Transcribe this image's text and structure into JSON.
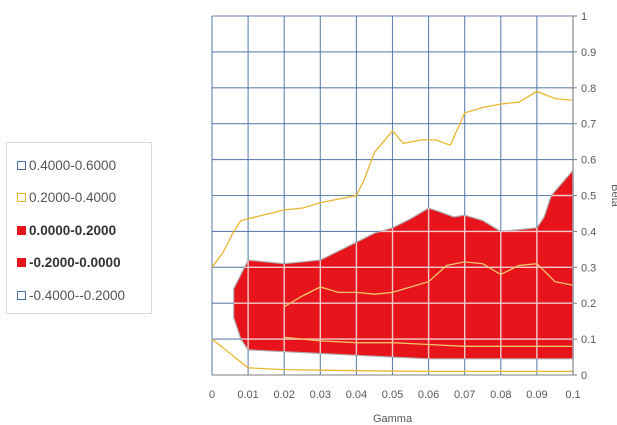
{
  "chart_data": {
    "type": "contour",
    "xlabel": "Gamma",
    "ylabel": "Beta",
    "x_ticks": [
      "0",
      "0.01",
      "0.02",
      "0.03",
      "0.04",
      "0.05",
      "0.06",
      "0.07",
      "0.08",
      "0.09",
      "0.1"
    ],
    "y_ticks": [
      "0",
      "0.1",
      "0.2",
      "0.3",
      "0.4",
      "0.5",
      "0.6",
      "0.7",
      "0.8",
      "0.9",
      "1"
    ],
    "xlim": [
      0,
      0.1
    ],
    "ylim": [
      0,
      1
    ],
    "grid": true,
    "legend_position": "left",
    "legend": [
      {
        "label": "0.4000-0.6000",
        "color": "#4a6fa5",
        "style": "outline",
        "bold": false
      },
      {
        "label": "0.2000-0.4000",
        "color": "#e8b730",
        "style": "outline",
        "bold": false
      },
      {
        "label": "0.0000-0.2000",
        "color": "#e8141c",
        "style": "filled",
        "bold": true
      },
      {
        "label": "-0.2000-0.0000",
        "color": "#e8141c",
        "style": "filled",
        "bold": true
      },
      {
        "label": "-0.4000--0.2000",
        "color": "#4a6fa5",
        "style": "outline",
        "bold": false
      }
    ],
    "regions": [
      {
        "band": "0.2000-0.4000",
        "upper_boundary": [
          [
            0,
            0.3
          ],
          [
            0.003,
            0.34
          ],
          [
            0.006,
            0.4
          ],
          [
            0.008,
            0.43
          ],
          [
            0.012,
            0.44
          ],
          [
            0.02,
            0.46
          ],
          [
            0.025,
            0.465
          ],
          [
            0.03,
            0.48
          ],
          [
            0.035,
            0.49
          ],
          [
            0.04,
            0.5
          ],
          [
            0.042,
            0.54
          ],
          [
            0.045,
            0.62
          ],
          [
            0.05,
            0.68
          ],
          [
            0.053,
            0.645
          ],
          [
            0.058,
            0.655
          ],
          [
            0.062,
            0.655
          ],
          [
            0.066,
            0.64
          ],
          [
            0.07,
            0.73
          ],
          [
            0.075,
            0.745
          ],
          [
            0.08,
            0.755
          ],
          [
            0.085,
            0.76
          ],
          [
            0.09,
            0.79
          ],
          [
            0.095,
            0.77
          ],
          [
            0.1,
            0.765
          ]
        ],
        "lower_boundary": [
          [
            0,
            0.1
          ],
          [
            0.005,
            0.06
          ],
          [
            0.01,
            0.02
          ],
          [
            0.02,
            0.015
          ],
          [
            0.04,
            0.012
          ],
          [
            0.06,
            0.01
          ],
          [
            0.08,
            0.01
          ],
          [
            0.1,
            0.01
          ]
        ]
      },
      {
        "band": "0.0000-0.2000",
        "upper_boundary": [
          [
            0.006,
            0.24
          ],
          [
            0.01,
            0.32
          ],
          [
            0.015,
            0.315
          ],
          [
            0.02,
            0.31
          ],
          [
            0.03,
            0.32
          ],
          [
            0.035,
            0.345
          ],
          [
            0.04,
            0.37
          ],
          [
            0.045,
            0.395
          ],
          [
            0.05,
            0.41
          ],
          [
            0.055,
            0.435
          ],
          [
            0.06,
            0.465
          ],
          [
            0.063,
            0.455
          ],
          [
            0.067,
            0.44
          ],
          [
            0.07,
            0.445
          ],
          [
            0.075,
            0.43
          ],
          [
            0.08,
            0.4
          ],
          [
            0.085,
            0.405
          ],
          [
            0.09,
            0.41
          ],
          [
            0.092,
            0.44
          ],
          [
            0.094,
            0.5
          ],
          [
            0.1,
            0.57
          ]
        ],
        "lower_boundary": [
          [
            0.006,
            0.16
          ],
          [
            0.008,
            0.1
          ],
          [
            0.01,
            0.07
          ],
          [
            0.02,
            0.065
          ],
          [
            0.03,
            0.06
          ],
          [
            0.04,
            0.055
          ],
          [
            0.05,
            0.05
          ],
          [
            0.06,
            0.045
          ],
          [
            0.08,
            0.045
          ],
          [
            0.1,
            0.045
          ]
        ]
      },
      {
        "band": "0.0000-0.2000 inner contour",
        "line": [
          [
            0.02,
            0.19
          ],
          [
            0.025,
            0.22
          ],
          [
            0.03,
            0.245
          ],
          [
            0.035,
            0.23
          ],
          [
            0.04,
            0.23
          ],
          [
            0.045,
            0.225
          ],
          [
            0.05,
            0.23
          ],
          [
            0.055,
            0.245
          ],
          [
            0.06,
            0.26
          ],
          [
            0.065,
            0.305
          ],
          [
            0.07,
            0.315
          ],
          [
            0.075,
            0.31
          ],
          [
            0.08,
            0.28
          ],
          [
            0.085,
            0.305
          ],
          [
            0.09,
            0.31
          ],
          [
            0.095,
            0.26
          ],
          [
            0.1,
            0.25
          ]
        ]
      },
      {
        "band": "0.0000-0.2000 inner contour",
        "line": [
          [
            0.02,
            0.105
          ],
          [
            0.03,
            0.095
          ],
          [
            0.04,
            0.09
          ],
          [
            0.05,
            0.09
          ],
          [
            0.06,
            0.085
          ],
          [
            0.07,
            0.08
          ],
          [
            0.08,
            0.08
          ],
          [
            0.09,
            0.08
          ],
          [
            0.1,
            0.08
          ]
        ]
      }
    ]
  }
}
